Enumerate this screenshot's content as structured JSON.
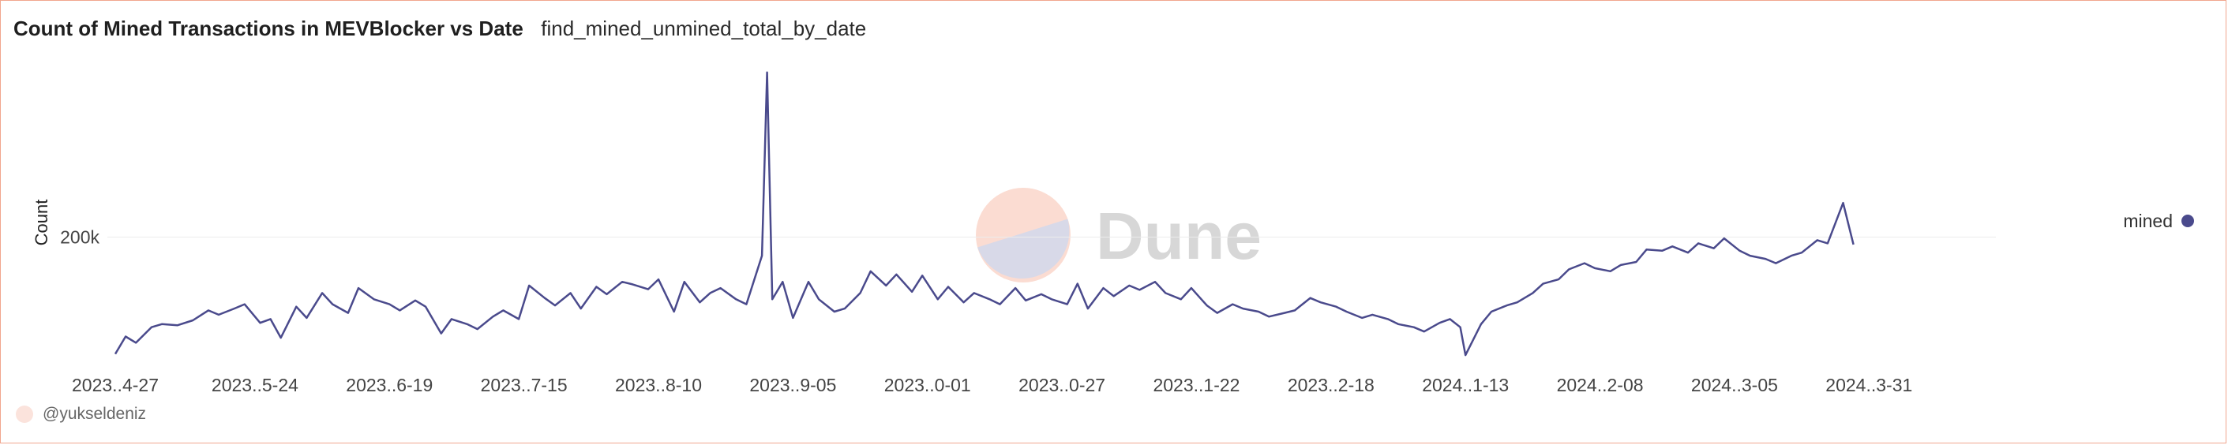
{
  "header": {
    "title": "Count of Mined Transactions in MEVBlocker vs Date",
    "query_name": "find_mined_unmined_total_by_date"
  },
  "watermark": {
    "text": "Dune",
    "colors": {
      "top": "#fbdcd2",
      "bottom": "#d8d9e8",
      "text": "#d7d7d7"
    }
  },
  "credit": {
    "user": "@yukseldeniz"
  },
  "chart_data": {
    "type": "line",
    "ylabel": "Count",
    "xlabel": "",
    "yticks": [
      {
        "value": 200000,
        "label": "200k"
      }
    ],
    "ylim": [
      0,
      480000
    ],
    "xlim": [
      "2023-04-27",
      "2024-04-23"
    ],
    "grid": {
      "y": true,
      "x": false
    },
    "legend": {
      "position": "right",
      "entries": [
        "mined"
      ]
    },
    "xtick_labels": [
      {
        "date": "2023-04-27",
        "label": "2023..4-27"
      },
      {
        "date": "2023-05-24",
        "label": "2023..5-24"
      },
      {
        "date": "2023-06-19",
        "label": "2023..6-19"
      },
      {
        "date": "2023-07-15",
        "label": "2023..7-15"
      },
      {
        "date": "2023-08-10",
        "label": "2023..8-10"
      },
      {
        "date": "2023-09-05",
        "label": "2023..9-05"
      },
      {
        "date": "2023-10-01",
        "label": "2023..0-01"
      },
      {
        "date": "2023-10-27",
        "label": "2023..0-27"
      },
      {
        "date": "2023-11-22",
        "label": "2023..1-22"
      },
      {
        "date": "2023-12-18",
        "label": "2023..2-18"
      },
      {
        "date": "2024-01-13",
        "label": "2024..1-13"
      },
      {
        "date": "2024-02-08",
        "label": "2024..2-08"
      },
      {
        "date": "2024-03-05",
        "label": "2024..3-05"
      },
      {
        "date": "2024-03-31",
        "label": "2024..3-31"
      }
    ],
    "series": [
      {
        "name": "mined",
        "color": "#4a4a8c",
        "points": [
          [
            "2023-04-27",
            12000
          ],
          [
            "2023-04-29",
            40000
          ],
          [
            "2023-05-01",
            30000
          ],
          [
            "2023-05-04",
            55000
          ],
          [
            "2023-05-06",
            60000
          ],
          [
            "2023-05-09",
            58000
          ],
          [
            "2023-05-12",
            66000
          ],
          [
            "2023-05-15",
            82000
          ],
          [
            "2023-05-17",
            75000
          ],
          [
            "2023-05-20",
            85000
          ],
          [
            "2023-05-22",
            92000
          ],
          [
            "2023-05-25",
            62000
          ],
          [
            "2023-05-27",
            68000
          ],
          [
            "2023-05-29",
            38000
          ],
          [
            "2023-06-01",
            88000
          ],
          [
            "2023-06-03",
            70000
          ],
          [
            "2023-06-06",
            110000
          ],
          [
            "2023-06-08",
            92000
          ],
          [
            "2023-06-11",
            78000
          ],
          [
            "2023-06-13",
            118000
          ],
          [
            "2023-06-16",
            100000
          ],
          [
            "2023-06-19",
            92000
          ],
          [
            "2023-06-21",
            82000
          ],
          [
            "2023-06-24",
            98000
          ],
          [
            "2023-06-26",
            88000
          ],
          [
            "2023-06-29",
            45000
          ],
          [
            "2023-07-01",
            68000
          ],
          [
            "2023-07-04",
            60000
          ],
          [
            "2023-07-06",
            52000
          ],
          [
            "2023-07-09",
            72000
          ],
          [
            "2023-07-11",
            82000
          ],
          [
            "2023-07-14",
            68000
          ],
          [
            "2023-07-16",
            122000
          ],
          [
            "2023-07-19",
            102000
          ],
          [
            "2023-07-21",
            90000
          ],
          [
            "2023-07-24",
            110000
          ],
          [
            "2023-07-26",
            85000
          ],
          [
            "2023-07-29",
            120000
          ],
          [
            "2023-07-31",
            108000
          ],
          [
            "2023-08-03",
            128000
          ],
          [
            "2023-08-05",
            124000
          ],
          [
            "2023-08-08",
            116000
          ],
          [
            "2023-08-10",
            132000
          ],
          [
            "2023-08-13",
            80000
          ],
          [
            "2023-08-15",
            128000
          ],
          [
            "2023-08-18",
            95000
          ],
          [
            "2023-08-20",
            110000
          ],
          [
            "2023-08-22",
            118000
          ],
          [
            "2023-08-25",
            100000
          ],
          [
            "2023-08-27",
            92000
          ],
          [
            "2023-08-30",
            170000
          ],
          [
            "2023-08-31",
            465000
          ],
          [
            "2023-09-01",
            100000
          ],
          [
            "2023-09-03",
            128000
          ],
          [
            "2023-09-05",
            70000
          ],
          [
            "2023-09-08",
            128000
          ],
          [
            "2023-09-10",
            100000
          ],
          [
            "2023-09-13",
            80000
          ],
          [
            "2023-09-15",
            85000
          ],
          [
            "2023-09-18",
            110000
          ],
          [
            "2023-09-20",
            145000
          ],
          [
            "2023-09-23",
            122000
          ],
          [
            "2023-09-25",
            140000
          ],
          [
            "2023-09-28",
            112000
          ],
          [
            "2023-09-30",
            138000
          ],
          [
            "2023-10-03",
            100000
          ],
          [
            "2023-10-05",
            120000
          ],
          [
            "2023-10-08",
            95000
          ],
          [
            "2023-10-10",
            110000
          ],
          [
            "2023-10-13",
            100000
          ],
          [
            "2023-10-15",
            92000
          ],
          [
            "2023-10-18",
            118000
          ],
          [
            "2023-10-20",
            98000
          ],
          [
            "2023-10-23",
            108000
          ],
          [
            "2023-10-25",
            100000
          ],
          [
            "2023-10-28",
            92000
          ],
          [
            "2023-10-30",
            125000
          ],
          [
            "2023-11-01",
            85000
          ],
          [
            "2023-11-04",
            118000
          ],
          [
            "2023-11-06",
            105000
          ],
          [
            "2023-11-09",
            122000
          ],
          [
            "2023-11-11",
            115000
          ],
          [
            "2023-11-14",
            128000
          ],
          [
            "2023-11-16",
            110000
          ],
          [
            "2023-11-19",
            100000
          ],
          [
            "2023-11-21",
            118000
          ],
          [
            "2023-11-24",
            90000
          ],
          [
            "2023-11-26",
            78000
          ],
          [
            "2023-11-29",
            92000
          ],
          [
            "2023-12-01",
            85000
          ],
          [
            "2023-12-04",
            80000
          ],
          [
            "2023-12-06",
            72000
          ],
          [
            "2023-12-09",
            78000
          ],
          [
            "2023-12-11",
            82000
          ],
          [
            "2023-12-14",
            102000
          ],
          [
            "2023-12-16",
            95000
          ],
          [
            "2023-12-19",
            88000
          ],
          [
            "2023-12-21",
            80000
          ],
          [
            "2023-12-24",
            70000
          ],
          [
            "2023-12-26",
            75000
          ],
          [
            "2023-12-29",
            68000
          ],
          [
            "2023-12-31",
            60000
          ],
          [
            "2024-01-03",
            55000
          ],
          [
            "2024-01-05",
            48000
          ],
          [
            "2024-01-08",
            62000
          ],
          [
            "2024-01-10",
            68000
          ],
          [
            "2024-01-12",
            55000
          ],
          [
            "2024-01-13",
            10000
          ],
          [
            "2024-01-16",
            60000
          ],
          [
            "2024-01-18",
            80000
          ],
          [
            "2024-01-21",
            90000
          ],
          [
            "2024-01-23",
            95000
          ],
          [
            "2024-01-26",
            110000
          ],
          [
            "2024-01-28",
            125000
          ],
          [
            "2024-01-31",
            132000
          ],
          [
            "2024-02-02",
            148000
          ],
          [
            "2024-02-05",
            158000
          ],
          [
            "2024-02-07",
            150000
          ],
          [
            "2024-02-10",
            145000
          ],
          [
            "2024-02-12",
            155000
          ],
          [
            "2024-02-15",
            160000
          ],
          [
            "2024-02-17",
            180000
          ],
          [
            "2024-02-20",
            178000
          ],
          [
            "2024-02-22",
            185000
          ],
          [
            "2024-02-25",
            175000
          ],
          [
            "2024-02-27",
            190000
          ],
          [
            "2024-03-01",
            182000
          ],
          [
            "2024-03-03",
            198000
          ],
          [
            "2024-03-06",
            178000
          ],
          [
            "2024-03-08",
            170000
          ],
          [
            "2024-03-11",
            165000
          ],
          [
            "2024-03-13",
            158000
          ],
          [
            "2024-03-16",
            170000
          ],
          [
            "2024-03-18",
            175000
          ],
          [
            "2024-03-21",
            195000
          ],
          [
            "2024-03-23",
            190000
          ],
          [
            "2024-03-26",
            255000
          ],
          [
            "2024-03-28",
            188000
          ]
        ]
      }
    ]
  }
}
